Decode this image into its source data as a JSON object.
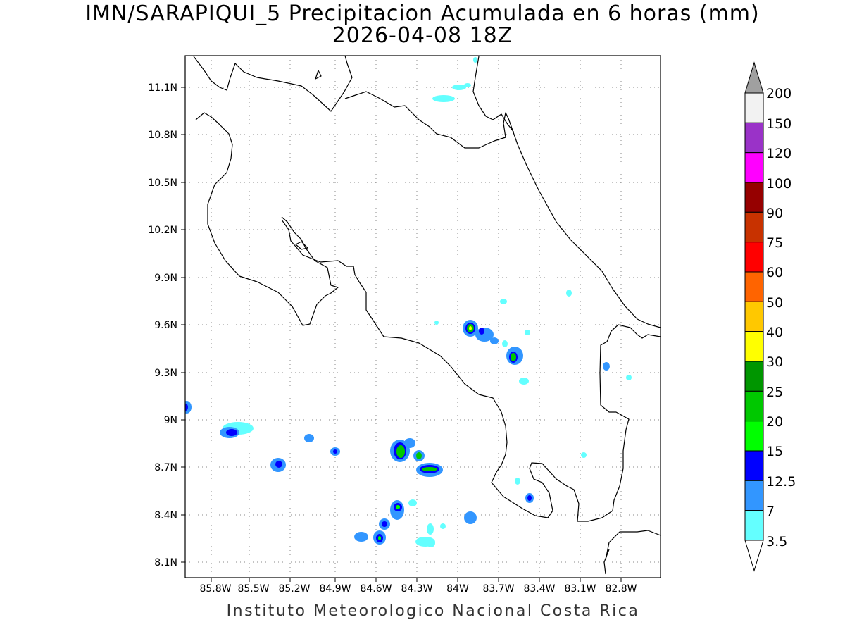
{
  "title_line1": "IMN/SARAPIQUI_5 Precipitacion Acumulada en 6 horas (mm)",
  "title_line2": "2026-04-08 18Z",
  "credit": "Instituto Meteorologico Nacional Costa Rica",
  "map": {
    "lon_ticks": [
      "85.8W",
      "85.5W",
      "85.2W",
      "84.9W",
      "84.6W",
      "84.3W",
      "84W",
      "83.7W",
      "83.4W",
      "83.1W",
      "82.8W"
    ],
    "lat_ticks": [
      "11.1N",
      "10.8N",
      "10.5N",
      "10.2N",
      "9.9N",
      "9.6N",
      "9.3N",
      "9N",
      "8.7N",
      "8.4N",
      "8.1N"
    ],
    "grid": "dotted"
  },
  "colorbar": {
    "labels": [
      "200",
      "150",
      "120",
      "100",
      "90",
      "75",
      "60",
      "50",
      "40",
      "30",
      "25",
      "20",
      "15",
      "12.5",
      "7",
      "3.5"
    ],
    "colors": [
      "#f2f2f2",
      "#9a32c8",
      "#ff00ff",
      "#960000",
      "#c83200",
      "#ff0000",
      "#ff6400",
      "#ffc800",
      "#ffff00",
      "#009600",
      "#00c800",
      "#00ff00",
      "#0000ff",
      "#3296ff",
      "#64ffff"
    ],
    "overflow_color": "#a0a0a0"
  },
  "colors": {
    "light_cyan": "#64ffff",
    "light_blue": "#3296ff",
    "blue": "#0000ff",
    "green": "#00ff00",
    "dark_green": "#00c800",
    "yellow": "#ffff00"
  }
}
